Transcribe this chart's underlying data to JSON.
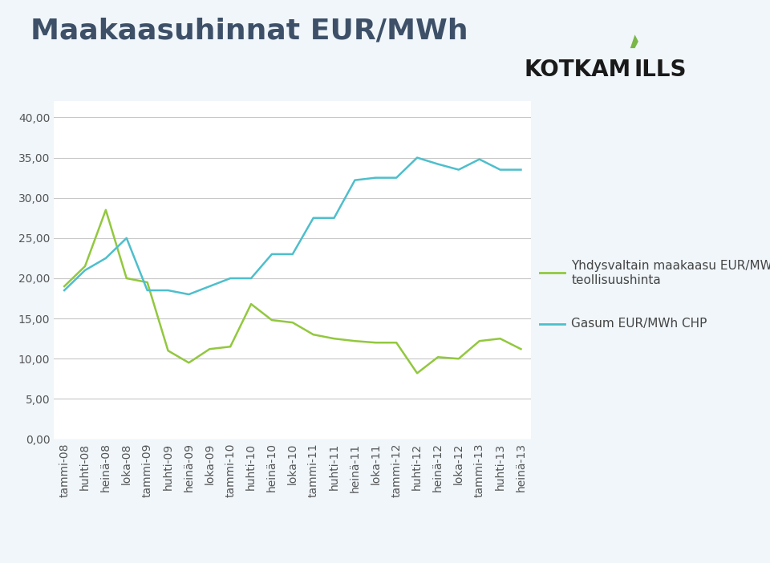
{
  "title": "Maakaasuhinnat EUR/MWh",
  "title_color": "#3d5068",
  "title_fontsize": 26,
  "background_color": "#f0f6fa",
  "plot_bg_color": "#ffffff",
  "x_labels": [
    "tammi-08",
    "huhti-08",
    "heinä-08",
    "loka-08",
    "tammi-09",
    "huhti-09",
    "heinä-09",
    "loka-09",
    "tammi-10",
    "huhti-10",
    "heinä-10",
    "loka-10",
    "tammi-11",
    "huhti-11",
    "heinä-11",
    "loka-11",
    "tammi-12",
    "huhti-12",
    "heinä-12",
    "loka-12",
    "tammi-13",
    "huhti-13",
    "heinä-13"
  ],
  "green_series": [
    19.0,
    21.5,
    28.5,
    20.0,
    19.5,
    11.0,
    9.5,
    11.2,
    11.5,
    16.8,
    14.8,
    14.5,
    13.0,
    12.5,
    12.2,
    12.0,
    12.0,
    8.2,
    10.2,
    10.0,
    12.2,
    12.5,
    11.2
  ],
  "blue_series": [
    18.5,
    21.0,
    22.5,
    25.0,
    18.5,
    18.5,
    18.0,
    19.0,
    20.0,
    20.0,
    23.0,
    23.0,
    27.5,
    27.5,
    32.2,
    32.5,
    32.5,
    35.0,
    34.2,
    33.5,
    34.8,
    33.5,
    33.5
  ],
  "green_color": "#92c83e",
  "blue_color": "#4dbfcc",
  "line_width": 1.8,
  "ylim": [
    0,
    42
  ],
  "yticks": [
    0.0,
    5.0,
    10.0,
    15.0,
    20.0,
    25.0,
    30.0,
    35.0,
    40.0
  ],
  "legend_green": "Yhdysvaltain maakaasu EUR/MWh\nteollisuushinta",
  "legend_blue": "Gasum EUR/MWh CHP",
  "legend_fontsize": 11,
  "grid_color": "#c8c8c8",
  "tick_fontsize": 10,
  "logo_kotka": "KOTKA",
  "logo_mills": "mills",
  "logo_color": "#1a1a1a",
  "logo_leaf_color": "#7ab648"
}
